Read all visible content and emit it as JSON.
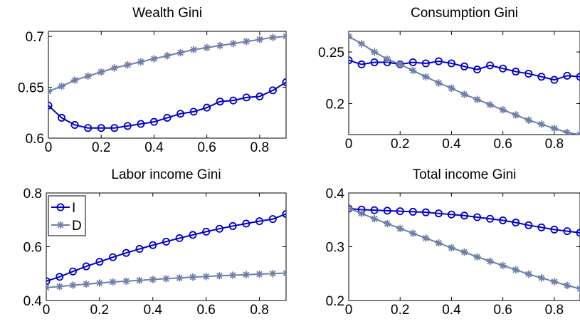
{
  "figure": {
    "background": "#ffffff"
  },
  "colors": {
    "I": "#0000cc",
    "D": "#6e7fa8"
  },
  "chart_data": [
    {
      "type": "line",
      "title": "Wealth Gini",
      "xlim": [
        0,
        0.9
      ],
      "ylim": [
        0.6,
        0.705
      ],
      "xticks": [
        0,
        0.2,
        0.4,
        0.6,
        0.8
      ],
      "xtick_labels": [
        "0",
        "0.2",
        "0.4",
        "0.6",
        "0.8"
      ],
      "yticks": [
        0.6,
        0.65,
        0.7
      ],
      "ytick_labels": [
        "0.6",
        "0.65",
        "0.7"
      ],
      "x": [
        0,
        0.05,
        0.1,
        0.15,
        0.2,
        0.25,
        0.3,
        0.35,
        0.4,
        0.45,
        0.5,
        0.55,
        0.6,
        0.65,
        0.7,
        0.75,
        0.8,
        0.85,
        0.9
      ],
      "series": [
        {
          "name": "I",
          "marker": "circle",
          "values": [
            0.632,
            0.62,
            0.613,
            0.61,
            0.61,
            0.61,
            0.612,
            0.614,
            0.616,
            0.62,
            0.624,
            0.626,
            0.63,
            0.636,
            0.637,
            0.64,
            0.641,
            0.647,
            0.655
          ]
        },
        {
          "name": "D",
          "marker": "star",
          "values": [
            0.646,
            0.651,
            0.657,
            0.661,
            0.665,
            0.669,
            0.672,
            0.675,
            0.678,
            0.681,
            0.684,
            0.687,
            0.689,
            0.691,
            0.693,
            0.695,
            0.697,
            0.699,
            0.7
          ]
        }
      ],
      "legend": null
    },
    {
      "type": "line",
      "title": "Consumption Gini",
      "xlim": [
        0,
        0.9
      ],
      "ylim": [
        0.17,
        0.27
      ],
      "xticks": [
        0,
        0.2,
        0.4,
        0.6,
        0.8
      ],
      "xtick_labels": [
        "0",
        "0.2",
        "0.4",
        "0.6",
        "0.8"
      ],
      "yticks": [
        0.2,
        0.25
      ],
      "ytick_labels": [
        "0.2",
        "0.25"
      ],
      "x": [
        0,
        0.05,
        0.1,
        0.15,
        0.2,
        0.25,
        0.3,
        0.35,
        0.4,
        0.45,
        0.5,
        0.55,
        0.6,
        0.65,
        0.7,
        0.75,
        0.8,
        0.85,
        0.9
      ],
      "series": [
        {
          "name": "I",
          "marker": "circle",
          "values": [
            0.242,
            0.238,
            0.24,
            0.24,
            0.238,
            0.24,
            0.239,
            0.241,
            0.239,
            0.236,
            0.233,
            0.237,
            0.234,
            0.231,
            0.229,
            0.226,
            0.223,
            0.227,
            0.226
          ]
        },
        {
          "name": "D",
          "marker": "star",
          "values": [
            0.265,
            0.258,
            0.25,
            0.243,
            0.238,
            0.232,
            0.226,
            0.22,
            0.215,
            0.209,
            0.204,
            0.199,
            0.194,
            0.189,
            0.184,
            0.18,
            0.176,
            0.172,
            0.17
          ]
        }
      ],
      "legend": null
    },
    {
      "type": "line",
      "title": "Labor income Gini",
      "xlim": [
        0,
        0.9
      ],
      "ylim": [
        0.4,
        0.8
      ],
      "xticks": [
        0,
        0.2,
        0.4,
        0.6,
        0.8
      ],
      "xtick_labels": [
        "0",
        "0.2",
        "0.4",
        "0.6",
        "0.8"
      ],
      "yticks": [
        0.4,
        0.6,
        0.8
      ],
      "ytick_labels": [
        "0.4",
        "0.6",
        "0.8"
      ],
      "x": [
        0,
        0.05,
        0.1,
        0.15,
        0.2,
        0.25,
        0.3,
        0.35,
        0.4,
        0.45,
        0.5,
        0.55,
        0.6,
        0.65,
        0.7,
        0.75,
        0.8,
        0.85,
        0.9
      ],
      "series": [
        {
          "name": "I",
          "marker": "circle",
          "values": [
            0.472,
            0.488,
            0.508,
            0.527,
            0.544,
            0.561,
            0.577,
            0.592,
            0.606,
            0.619,
            0.632,
            0.644,
            0.656,
            0.667,
            0.677,
            0.686,
            0.695,
            0.703,
            0.722
          ]
        },
        {
          "name": "D",
          "marker": "star",
          "values": [
            0.448,
            0.452,
            0.457,
            0.461,
            0.465,
            0.469,
            0.472,
            0.475,
            0.478,
            0.481,
            0.484,
            0.487,
            0.489,
            0.492,
            0.494,
            0.496,
            0.498,
            0.5,
            0.502
          ]
        }
      ],
      "legend": {
        "placement": "top-left",
        "entries": [
          "I",
          "D"
        ]
      }
    },
    {
      "type": "line",
      "title": "Total income Gini",
      "xlim": [
        0,
        0.9
      ],
      "ylim": [
        0.2,
        0.4
      ],
      "xticks": [
        0,
        0.2,
        0.4,
        0.6,
        0.8
      ],
      "xtick_labels": [
        "0",
        "0.2",
        "0.4",
        "0.6",
        "0.8"
      ],
      "yticks": [
        0.2,
        0.3,
        0.4
      ],
      "ytick_labels": [
        "0.2",
        "0.3",
        "0.4"
      ],
      "x": [
        0,
        0.05,
        0.1,
        0.15,
        0.2,
        0.25,
        0.3,
        0.35,
        0.4,
        0.45,
        0.5,
        0.55,
        0.6,
        0.65,
        0.7,
        0.75,
        0.8,
        0.85,
        0.9
      ],
      "series": [
        {
          "name": "I",
          "marker": "circle",
          "values": [
            0.371,
            0.369,
            0.368,
            0.367,
            0.366,
            0.365,
            0.364,
            0.362,
            0.36,
            0.358,
            0.355,
            0.352,
            0.349,
            0.345,
            0.34,
            0.336,
            0.332,
            0.329,
            0.326
          ]
        },
        {
          "name": "D",
          "marker": "star",
          "values": [
            0.372,
            0.362,
            0.352,
            0.343,
            0.334,
            0.325,
            0.316,
            0.307,
            0.298,
            0.29,
            0.281,
            0.273,
            0.265,
            0.257,
            0.249,
            0.242,
            0.235,
            0.228,
            0.222
          ]
        }
      ],
      "legend": null
    }
  ]
}
